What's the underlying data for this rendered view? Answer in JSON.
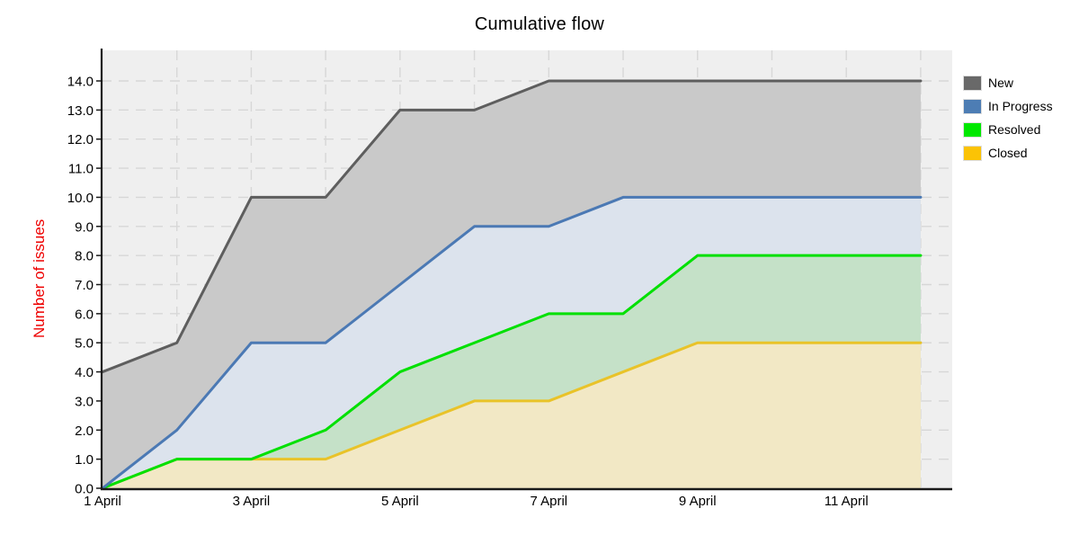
{
  "title": "Cumulative flow",
  "chart_data": {
    "type": "area",
    "title": "Cumulative flow",
    "xlabel": "",
    "ylabel": "Number of issues",
    "ylabel_color": "#ee0000",
    "ylim": [
      0,
      14
    ],
    "grid": "dashed",
    "legend_position": "right",
    "plot_background": "#efefef",
    "gridline_color": "#d7d7d7",
    "axis_color": "#1a1a1a",
    "x_days": [
      1,
      2,
      3,
      4,
      5,
      6,
      7,
      8,
      9,
      10,
      11,
      12
    ],
    "x_ticks": [
      {
        "day": 1,
        "label": "1 April"
      },
      {
        "day": 3,
        "label": "3 April"
      },
      {
        "day": 5,
        "label": "5 April"
      },
      {
        "day": 7,
        "label": "7 April"
      },
      {
        "day": 9,
        "label": "9 April"
      },
      {
        "day": 11,
        "label": "11 April"
      }
    ],
    "y_tick_labels": [
      "0.0",
      "1.0",
      "2.0",
      "3.0",
      "4.0",
      "5.0",
      "6.0",
      "7.0",
      "8.0",
      "9.0",
      "10.0",
      "11.0",
      "12.0",
      "13.0",
      "14.0"
    ],
    "series": [
      {
        "name": "New",
        "values": [
          4,
          5,
          10,
          10,
          13,
          13,
          14,
          14,
          14,
          14,
          14,
          14
        ],
        "line_color": "#5e5e5e",
        "fill_color": "#c9c9c9",
        "legend_color": "#696969"
      },
      {
        "name": "In Progress",
        "values": [
          0,
          2,
          5,
          5,
          7,
          9,
          9,
          10,
          10,
          10,
          10,
          10
        ],
        "line_color": "#4b79b4",
        "fill_color": "#dce3ed",
        "legend_color": "#4d7db4"
      },
      {
        "name": "Resolved",
        "values": [
          0,
          1,
          1,
          2,
          4,
          5,
          6,
          6,
          8,
          8,
          8,
          8
        ],
        "line_color": "#00e000",
        "fill_color": "#c5e1c8",
        "legend_color": "#00e800"
      },
      {
        "name": "Closed",
        "values": [
          0,
          1,
          1,
          1,
          2,
          3,
          3,
          4,
          5,
          5,
          5,
          5
        ],
        "line_color": "#e9c329",
        "fill_color": "#f2e8c5",
        "legend_color": "#fbc305"
      }
    ]
  },
  "legend": {
    "items": [
      {
        "label": "New"
      },
      {
        "label": "In Progress"
      },
      {
        "label": "Resolved"
      },
      {
        "label": "Closed"
      }
    ]
  }
}
